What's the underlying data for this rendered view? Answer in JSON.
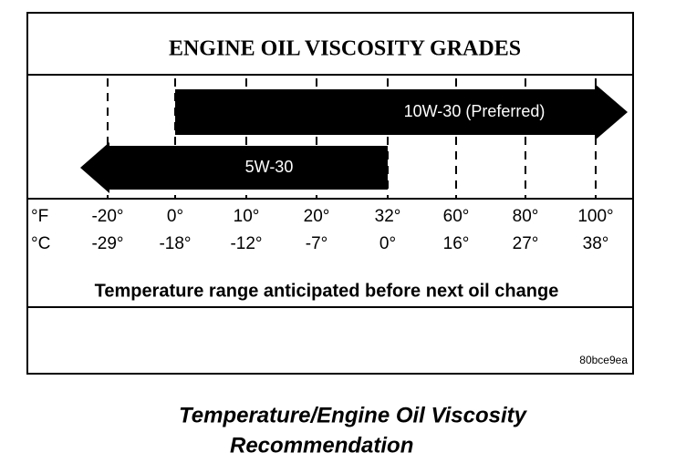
{
  "title": "ENGINE OIL VISCOSITY GRADES",
  "grades": [
    {
      "label": "10W-30 (Preferred)"
    },
    {
      "label": "5W-30"
    }
  ],
  "scale": {
    "fahrenheit_unit": "°F",
    "celsius_unit": "°C",
    "fahrenheit": [
      "-20°",
      "0°",
      "10°",
      "20°",
      "32°",
      "60°",
      "80°",
      "100°"
    ],
    "celsius": [
      "-29°",
      "-18°",
      "-12°",
      "-7°",
      "0°",
      "16°",
      "27°",
      "38°"
    ]
  },
  "range_caption": "Temperature range anticipated before next oil change",
  "code": "80bce9ea",
  "figure_caption": [
    "Temperature/Engine Oil Viscosity",
    "Recommendation"
  ]
}
